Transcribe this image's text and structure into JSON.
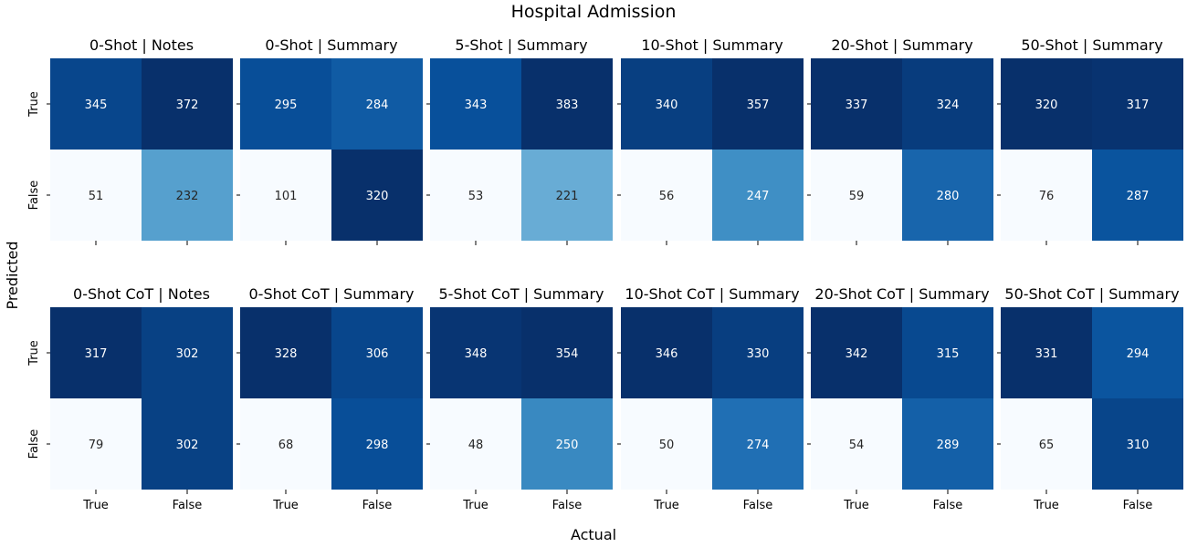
{
  "chart_data": {
    "type": "heatmap",
    "title": "Hospital Admission",
    "xlabel": "Actual",
    "ylabel": "Predicted",
    "row_labels": [
      "True",
      "False"
    ],
    "col_labels": [
      "True",
      "False"
    ],
    "colormap": "Blues",
    "panels": [
      {
        "title": "0-Shot | Notes",
        "matrix": [
          [
            345,
            372
          ],
          [
            51,
            232
          ]
        ]
      },
      {
        "title": "0-Shot | Summary",
        "matrix": [
          [
            295,
            284
          ],
          [
            101,
            320
          ]
        ]
      },
      {
        "title": "5-Shot | Summary",
        "matrix": [
          [
            343,
            383
          ],
          [
            53,
            221
          ]
        ]
      },
      {
        "title": "10-Shot | Summary",
        "matrix": [
          [
            340,
            357
          ],
          [
            56,
            247
          ]
        ]
      },
      {
        "title": "20-Shot | Summary",
        "matrix": [
          [
            337,
            324
          ],
          [
            59,
            280
          ]
        ]
      },
      {
        "title": "50-Shot | Summary",
        "matrix": [
          [
            320,
            317
          ],
          [
            76,
            287
          ]
        ]
      },
      {
        "title": "0-Shot CoT | Notes",
        "matrix": [
          [
            317,
            302
          ],
          [
            79,
            302
          ]
        ]
      },
      {
        "title": "0-Shot CoT | Summary",
        "matrix": [
          [
            328,
            306
          ],
          [
            68,
            298
          ]
        ]
      },
      {
        "title": "5-Shot CoT | Summary",
        "matrix": [
          [
            348,
            354
          ],
          [
            48,
            250
          ]
        ]
      },
      {
        "title": "10-Shot CoT | Summary",
        "matrix": [
          [
            346,
            330
          ],
          [
            50,
            274
          ]
        ]
      },
      {
        "title": "20-Shot CoT | Summary",
        "matrix": [
          [
            342,
            315
          ],
          [
            54,
            289
          ]
        ]
      },
      {
        "title": "50-Shot CoT | Summary",
        "matrix": [
          [
            331,
            294
          ],
          [
            65,
            310
          ]
        ]
      }
    ]
  }
}
